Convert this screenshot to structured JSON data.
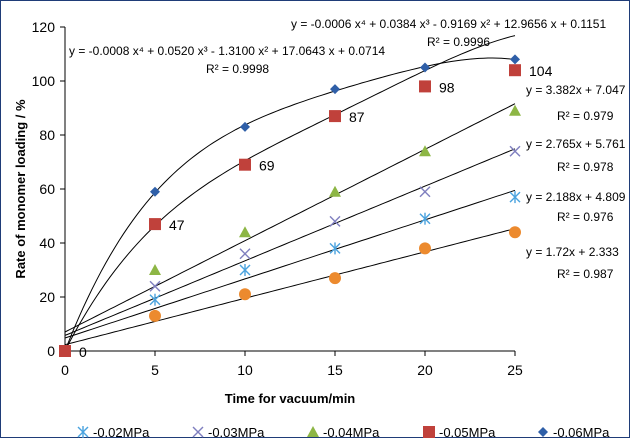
{
  "chart_data": {
    "type": "scatter",
    "xlabel": "Time for vacuum/min",
    "ylabel": "Rate of monomer loading / %",
    "xlim": [
      0,
      25
    ],
    "ylim": [
      0,
      120
    ],
    "x_ticks": [
      "0",
      "5",
      "10",
      "15",
      "20",
      "25"
    ],
    "y_ticks": [
      "0",
      "20",
      "40",
      "60",
      "80",
      "100",
      "120"
    ],
    "grid": false,
    "legend_position": "bottom",
    "x": [
      0,
      5,
      10,
      15,
      20,
      25
    ],
    "series": [
      {
        "name": "-0.02MPa",
        "marker": "asterisk",
        "color": "#4aa3df",
        "values": [
          0,
          19,
          30,
          38,
          49,
          57
        ],
        "trendline": "linear",
        "equation": "y = 2.188x + 4.809",
        "r2": "R² = 0.976",
        "fit": {
          "kind": "linear",
          "coef": [
            2.188,
            4.809
          ]
        }
      },
      {
        "name": "-0.03MPa",
        "marker": "x",
        "color": "#7f7fbf",
        "values": [
          0,
          24,
          36,
          48,
          59,
          74
        ],
        "trendline": "linear",
        "equation": "y = 2.765x + 5.761",
        "r2": "R² = 0.978",
        "fit": {
          "kind": "linear",
          "coef": [
            2.765,
            5.761
          ]
        }
      },
      {
        "name": "-0.04MPa",
        "marker": "triangle",
        "color": "#8db645",
        "values": [
          0,
          30,
          44,
          59,
          74,
          89
        ],
        "trendline": "linear",
        "equation": "y = 3.382x + 7.047",
        "r2": "R² = 0.979",
        "fit": {
          "kind": "linear",
          "coef": [
            3.382,
            7.047
          ]
        }
      },
      {
        "name": "-0.05MPa",
        "marker": "square",
        "color": "#c0413b",
        "values": [
          0,
          47,
          69,
          87,
          98,
          104
        ],
        "data_labels": [
          "0",
          "47",
          "69",
          "87",
          "98",
          "104"
        ],
        "trendline": "poly4",
        "equation": "y = -0.0008 x⁴ + 0.0520 x³ - 1.3100 x² + 17.0643 x + 0.0714",
        "r2": "R² = 0.9998",
        "fit": {
          "kind": "poly",
          "coef": [
            -0.0008,
            0.052,
            -1.31,
            17.0643,
            0.0714
          ]
        }
      },
      {
        "name": "-0.06MPa",
        "marker": "diamond",
        "color": "#2f5fa8",
        "values": [
          0,
          59,
          83,
          97,
          105,
          108
        ],
        "trendline": "poly4",
        "equation": "y = -0.0006 x⁴ + 0.0384 x³ - 0.9169 x² + 12.9656 x + 0.1151",
        "r2": "R² = 0.9996",
        "fit": {
          "kind": "poly",
          "coef": [
            -0.0006,
            0.0384,
            -0.9169,
            12.9656,
            0.1151
          ]
        }
      },
      {
        "name": "",
        "marker": "circle",
        "color": "#ec8a2e",
        "values": [
          0,
          13,
          21,
          27,
          38,
          44
        ],
        "trendline": "linear",
        "equation": "y = 1.72x + 2.333",
        "r2": "R² = 0.987",
        "fit": {
          "kind": "linear",
          "coef": [
            1.72,
            2.333
          ]
        }
      }
    ]
  }
}
